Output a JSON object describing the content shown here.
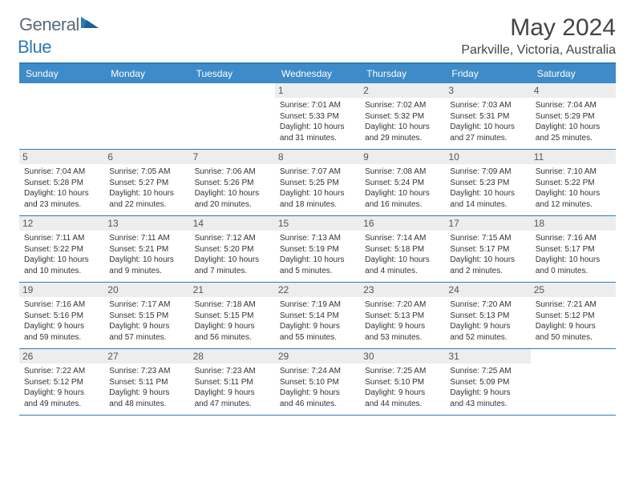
{
  "brand": {
    "part1": "General",
    "part2": "Blue"
  },
  "title": "May 2024",
  "location": "Parkville, Victoria, Australia",
  "colors": {
    "header_bg": "#3d8bc8",
    "border": "#2f7ab8",
    "daynum_bg": "#ededed",
    "logo_gray": "#5a6a78",
    "logo_blue": "#2a7ab8"
  },
  "weekdays": [
    "Sunday",
    "Monday",
    "Tuesday",
    "Wednesday",
    "Thursday",
    "Friday",
    "Saturday"
  ],
  "weeks": [
    [
      null,
      null,
      null,
      {
        "n": "1",
        "sr": "7:01 AM",
        "ss": "5:33 PM",
        "dl": "10 hours and 31 minutes."
      },
      {
        "n": "2",
        "sr": "7:02 AM",
        "ss": "5:32 PM",
        "dl": "10 hours and 29 minutes."
      },
      {
        "n": "3",
        "sr": "7:03 AM",
        "ss": "5:31 PM",
        "dl": "10 hours and 27 minutes."
      },
      {
        "n": "4",
        "sr": "7:04 AM",
        "ss": "5:29 PM",
        "dl": "10 hours and 25 minutes."
      }
    ],
    [
      {
        "n": "5",
        "sr": "7:04 AM",
        "ss": "5:28 PM",
        "dl": "10 hours and 23 minutes."
      },
      {
        "n": "6",
        "sr": "7:05 AM",
        "ss": "5:27 PM",
        "dl": "10 hours and 22 minutes."
      },
      {
        "n": "7",
        "sr": "7:06 AM",
        "ss": "5:26 PM",
        "dl": "10 hours and 20 minutes."
      },
      {
        "n": "8",
        "sr": "7:07 AM",
        "ss": "5:25 PM",
        "dl": "10 hours and 18 minutes."
      },
      {
        "n": "9",
        "sr": "7:08 AM",
        "ss": "5:24 PM",
        "dl": "10 hours and 16 minutes."
      },
      {
        "n": "10",
        "sr": "7:09 AM",
        "ss": "5:23 PM",
        "dl": "10 hours and 14 minutes."
      },
      {
        "n": "11",
        "sr": "7:10 AM",
        "ss": "5:22 PM",
        "dl": "10 hours and 12 minutes."
      }
    ],
    [
      {
        "n": "12",
        "sr": "7:11 AM",
        "ss": "5:22 PM",
        "dl": "10 hours and 10 minutes."
      },
      {
        "n": "13",
        "sr": "7:11 AM",
        "ss": "5:21 PM",
        "dl": "10 hours and 9 minutes."
      },
      {
        "n": "14",
        "sr": "7:12 AM",
        "ss": "5:20 PM",
        "dl": "10 hours and 7 minutes."
      },
      {
        "n": "15",
        "sr": "7:13 AM",
        "ss": "5:19 PM",
        "dl": "10 hours and 5 minutes."
      },
      {
        "n": "16",
        "sr": "7:14 AM",
        "ss": "5:18 PM",
        "dl": "10 hours and 4 minutes."
      },
      {
        "n": "17",
        "sr": "7:15 AM",
        "ss": "5:17 PM",
        "dl": "10 hours and 2 minutes."
      },
      {
        "n": "18",
        "sr": "7:16 AM",
        "ss": "5:17 PM",
        "dl": "10 hours and 0 minutes."
      }
    ],
    [
      {
        "n": "19",
        "sr": "7:16 AM",
        "ss": "5:16 PM",
        "dl": "9 hours and 59 minutes."
      },
      {
        "n": "20",
        "sr": "7:17 AM",
        "ss": "5:15 PM",
        "dl": "9 hours and 57 minutes."
      },
      {
        "n": "21",
        "sr": "7:18 AM",
        "ss": "5:15 PM",
        "dl": "9 hours and 56 minutes."
      },
      {
        "n": "22",
        "sr": "7:19 AM",
        "ss": "5:14 PM",
        "dl": "9 hours and 55 minutes."
      },
      {
        "n": "23",
        "sr": "7:20 AM",
        "ss": "5:13 PM",
        "dl": "9 hours and 53 minutes."
      },
      {
        "n": "24",
        "sr": "7:20 AM",
        "ss": "5:13 PM",
        "dl": "9 hours and 52 minutes."
      },
      {
        "n": "25",
        "sr": "7:21 AM",
        "ss": "5:12 PM",
        "dl": "9 hours and 50 minutes."
      }
    ],
    [
      {
        "n": "26",
        "sr": "7:22 AM",
        "ss": "5:12 PM",
        "dl": "9 hours and 49 minutes."
      },
      {
        "n": "27",
        "sr": "7:23 AM",
        "ss": "5:11 PM",
        "dl": "9 hours and 48 minutes."
      },
      {
        "n": "28",
        "sr": "7:23 AM",
        "ss": "5:11 PM",
        "dl": "9 hours and 47 minutes."
      },
      {
        "n": "29",
        "sr": "7:24 AM",
        "ss": "5:10 PM",
        "dl": "9 hours and 46 minutes."
      },
      {
        "n": "30",
        "sr": "7:25 AM",
        "ss": "5:10 PM",
        "dl": "9 hours and 44 minutes."
      },
      {
        "n": "31",
        "sr": "7:25 AM",
        "ss": "5:09 PM",
        "dl": "9 hours and 43 minutes."
      },
      null
    ]
  ]
}
